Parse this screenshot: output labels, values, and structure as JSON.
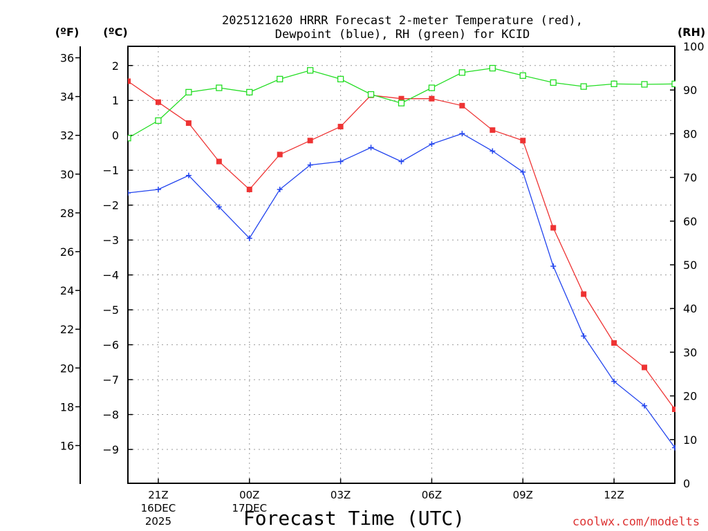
{
  "chart_data": {
    "type": "line",
    "title_line1": "2025121620 HRRR Forecast 2-meter Temperature (red),",
    "title_line2": "Dewpoint (blue), RH (green) for KCID",
    "xlabel": "Forecast Time (UTC)",
    "credit": "coolwx.com/modelts",
    "left_outer_unit": "(ºF)",
    "left_inner_unit": "(ºC)",
    "right_unit": "(RH)",
    "x_hours": [
      0,
      1,
      2,
      3,
      4,
      5,
      6,
      7,
      8,
      9,
      10,
      11,
      12,
      13,
      14,
      15,
      16,
      17,
      18
    ],
    "x_tick_labels": [
      {
        "hour": 1,
        "lines": [
          "21Z",
          "16DEC",
          "2025"
        ]
      },
      {
        "hour": 4,
        "lines": [
          "00Z",
          "17DEC"
        ]
      },
      {
        "hour": 7,
        "lines": [
          "03Z"
        ]
      },
      {
        "hour": 10,
        "lines": [
          "06Z"
        ]
      },
      {
        "hour": 13,
        "lines": [
          "09Z"
        ]
      },
      {
        "hour": 16,
        "lines": [
          "12Z"
        ]
      }
    ],
    "celsius_range": [
      -9.97,
      2.55
    ],
    "celsius_ticks": [
      "2",
      "1",
      "0",
      "−1",
      "−2",
      "−3",
      "−4",
      "−5",
      "−6",
      "−7",
      "−8",
      "−9"
    ],
    "celsius_tick_values": [
      2,
      1,
      0,
      -1,
      -2,
      -3,
      -4,
      -5,
      -6,
      -7,
      -8,
      -9
    ],
    "fahrenheit_ticks": [
      "36",
      "34",
      "32",
      "30",
      "28",
      "26",
      "24",
      "22",
      "20",
      "18",
      "16"
    ],
    "fahrenheit_tick_values": [
      36,
      34,
      32,
      30,
      28,
      26,
      24,
      22,
      20,
      18,
      16
    ],
    "rh_range": [
      0,
      100
    ],
    "rh_ticks": [
      "100",
      "90",
      "80",
      "70",
      "60",
      "50",
      "40",
      "30",
      "20",
      "10",
      "0"
    ],
    "rh_tick_values": [
      100,
      90,
      80,
      70,
      60,
      50,
      40,
      30,
      20,
      10,
      0
    ],
    "colors": {
      "temperature": "#ee3333",
      "dewpoint": "#2244ee",
      "rh": "#22dd22",
      "credit": "#dd3333"
    },
    "series": [
      {
        "name": "Temperature",
        "unit": "C",
        "marker": "filled-square",
        "values": [
          1.55,
          0.95,
          0.35,
          -0.75,
          -1.55,
          -0.55,
          -0.15,
          0.25,
          1.15,
          1.05,
          1.05,
          0.85,
          0.15,
          -0.15,
          -2.65,
          -4.55,
          -5.95,
          -6.65,
          -7.85
        ]
      },
      {
        "name": "Dewpoint",
        "unit": "C",
        "marker": "plus",
        "values": [
          -1.65,
          -1.55,
          -1.15,
          -2.05,
          -2.95,
          -1.55,
          -0.85,
          -0.75,
          -0.35,
          -0.75,
          -0.25,
          0.05,
          -0.45,
          -1.05,
          -3.75,
          -5.75,
          -7.05,
          -7.75,
          -8.95
        ]
      },
      {
        "name": "RH",
        "unit": "%",
        "marker": "open-square",
        "values": [
          79,
          83,
          89.5,
          90.5,
          89.5,
          92.5,
          94.5,
          92.5,
          89,
          87,
          90.5,
          94,
          95,
          93.3,
          91.7,
          90.8,
          91.4,
          91.3,
          91.4
        ]
      }
    ]
  }
}
